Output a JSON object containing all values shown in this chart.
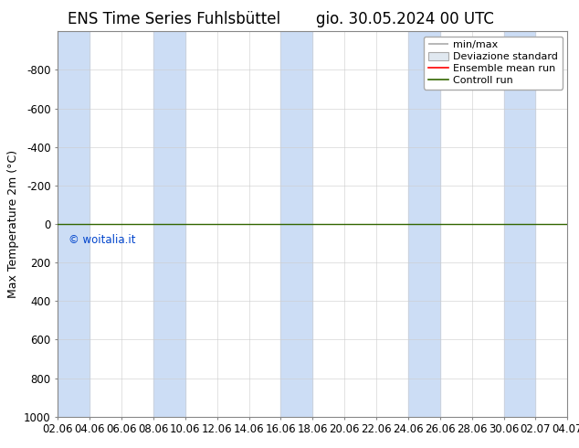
{
  "title": "ENS Time Series Fuhlsbüttel",
  "title_right": "gio. 30.05.2024 00 UTC",
  "ylabel": "Max Temperature 2m (°C)",
  "ylim_bottom": -1000,
  "ylim_top": 1000,
  "yticks": [
    -800,
    -600,
    -400,
    -200,
    0,
    200,
    400,
    600,
    800,
    1000
  ],
  "ytick_labels": [
    "-800",
    "-600",
    "-400",
    "-200",
    "0",
    "200",
    "400",
    "600",
    "800",
    "1000"
  ],
  "x_labels": [
    "02.06",
    "04.06",
    "06.06",
    "08.06",
    "10.06",
    "12.06",
    "14.06",
    "16.06",
    "18.06",
    "20.06",
    "22.06",
    "24.06",
    "26.06",
    "28.06",
    "30.06",
    "02.07",
    "04.07"
  ],
  "x_values": [
    0,
    2,
    4,
    6,
    8,
    10,
    12,
    14,
    16,
    18,
    20,
    22,
    24,
    26,
    28,
    30,
    32
  ],
  "xlim": [
    0,
    32
  ],
  "bg_color": "#ffffff",
  "plot_bg_color": "#ffffff",
  "stripe_color": "#ccddf5",
  "stripe_pairs": [
    [
      0,
      2
    ],
    [
      6,
      8
    ],
    [
      14,
      16
    ],
    [
      22,
      24
    ],
    [
      28,
      30
    ]
  ],
  "ensemble_mean_color": "#ff0000",
  "control_run_color": "#336600",
  "line_y_value": 0,
  "watermark_text": "© woitalia.it",
  "watermark_color": "#0044cc",
  "legend_items": [
    "min/max",
    "Deviazione standard",
    "Ensemble mean run",
    "Controll run"
  ],
  "title_fontsize": 12,
  "axis_fontsize": 9,
  "tick_fontsize": 8.5,
  "legend_fontsize": 8
}
